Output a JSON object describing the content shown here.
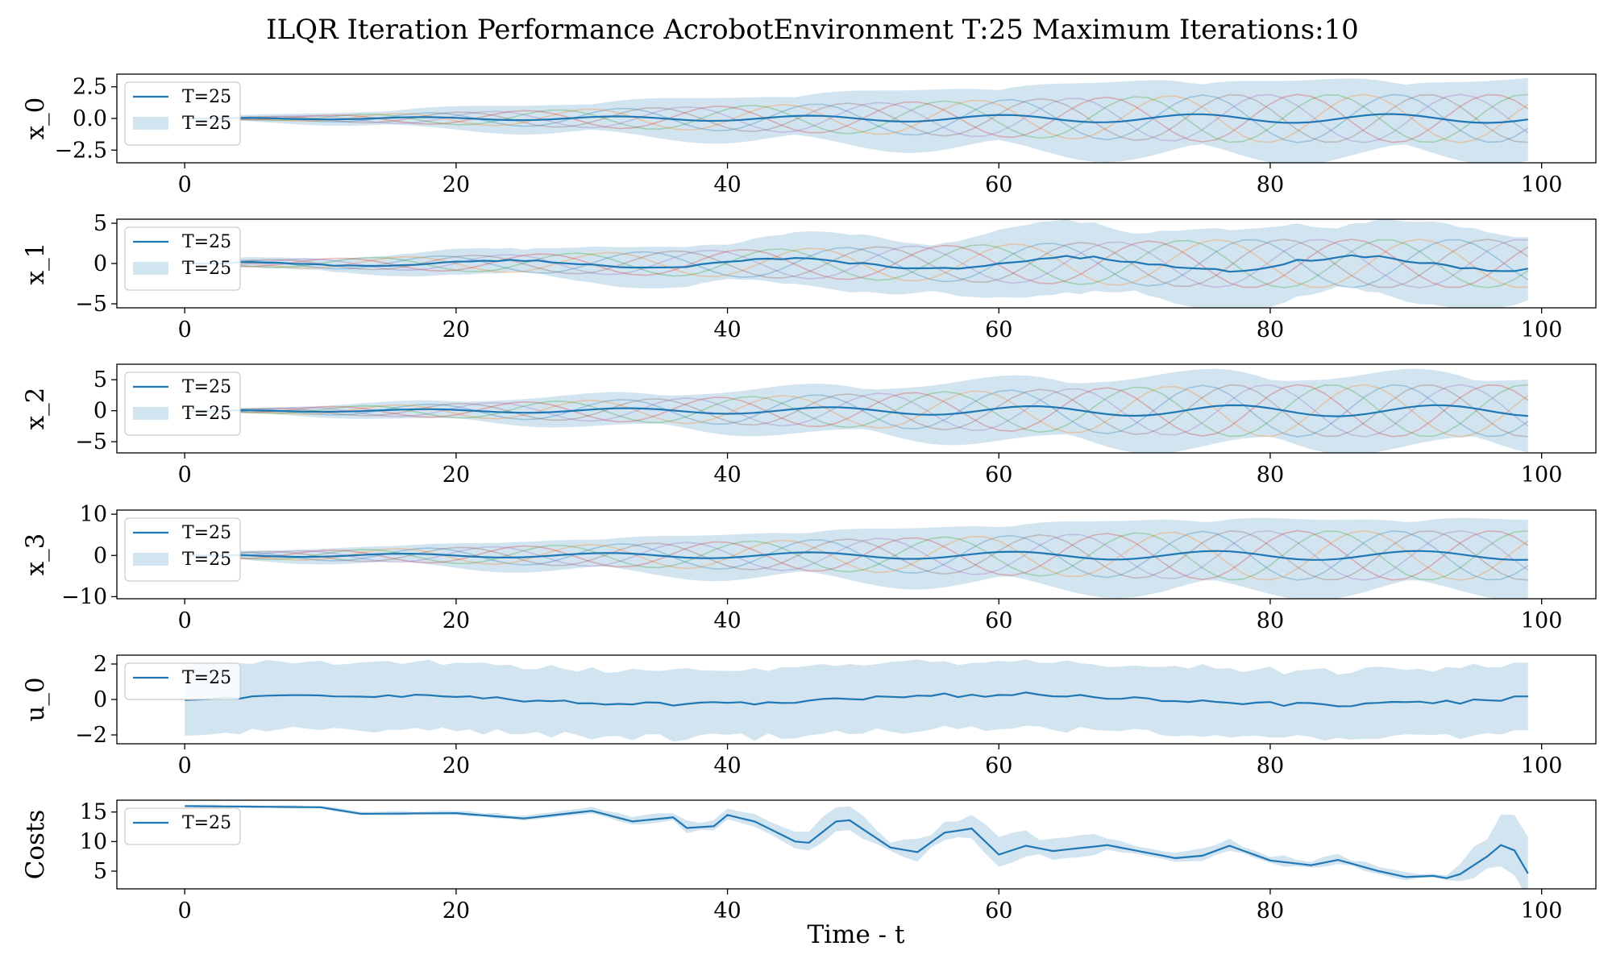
{
  "figure": {
    "title": "ILQR Iteration Performance AcrobotEnvironment T:25 Maximum Iterations:10",
    "xlabel": "Time - t"
  },
  "colors": {
    "mean_line": "#1f77b4",
    "band": "#1f77b4",
    "iterations": [
      "#1f77b4",
      "#ff7f0e",
      "#2ca02c",
      "#d62728",
      "#9467bd",
      "#8c564b"
    ]
  },
  "chart_data": [
    {
      "type": "line",
      "ylabel": "x_0",
      "xlim": [
        -5,
        104
      ],
      "ylim": [
        -3.5,
        3.5
      ],
      "xticks": [
        0,
        20,
        40,
        60,
        80,
        100
      ],
      "yticks": [
        -2.5,
        0.0,
        2.5
      ],
      "ytick_labels": [
        "−2.5",
        "0.0",
        "2.5"
      ],
      "legend": [
        "T=25",
        "T=25"
      ],
      "legend_position": "upper-left",
      "mean": {
        "start": 4,
        "omega": 0.44,
        "phase": 0.2,
        "amp": [
          0.05,
          0.35
        ],
        "noise": 0,
        "clip": null
      },
      "band": {
        "start": 4,
        "width": [
          0.2,
          2.9
        ]
      },
      "traces": {
        "count": 6,
        "start": 4,
        "omega": 0.44,
        "amp": [
          0.1,
          1.9
        ]
      }
    },
    {
      "type": "line",
      "ylabel": "x_1",
      "xlim": [
        -5,
        104
      ],
      "ylim": [
        -5.5,
        5.5
      ],
      "xticks": [
        0,
        20,
        40,
        60,
        80,
        100
      ],
      "yticks": [
        -5,
        0,
        5
      ],
      "ytick_labels": [
        "−5",
        "0",
        "5"
      ],
      "legend": [
        "T=25",
        "T=25"
      ],
      "legend_position": "upper-left",
      "mean": {
        "start": 4,
        "omega": 0.3,
        "phase": 0.8,
        "amp": [
          0.2,
          0.9
        ],
        "noise": 0.25,
        "clip": null
      },
      "band": {
        "start": 4,
        "width": [
          0.5,
          4.5
        ]
      },
      "traces": {
        "count": 6,
        "start": 4,
        "omega": 0.42,
        "amp": [
          0.4,
          3.0
        ]
      }
    },
    {
      "type": "line",
      "ylabel": "x_2",
      "xlim": [
        -5,
        104
      ],
      "ylim": [
        -6.8,
        7.5
      ],
      "xticks": [
        0,
        20,
        40,
        60,
        80,
        100
      ],
      "yticks": [
        -5,
        0,
        5
      ],
      "ytick_labels": [
        "−5",
        "0",
        "5"
      ],
      "legend": [
        "T=25",
        "T=25"
      ],
      "legend_position": "upper-left",
      "mean": {
        "start": 4,
        "omega": 0.42,
        "phase": 0.5,
        "amp": [
          0.1,
          0.9
        ],
        "noise": 0,
        "clip": null
      },
      "band": {
        "start": 4,
        "width": [
          0.4,
          5.6
        ]
      },
      "traces": {
        "count": 6,
        "start": 4,
        "omega": 0.44,
        "amp": [
          0.3,
          4.2
        ]
      }
    },
    {
      "type": "line",
      "ylabel": "x_3",
      "xlim": [
        -5,
        104
      ],
      "ylim": [
        -10.5,
        11
      ],
      "xticks": [
        0,
        20,
        40,
        60,
        80,
        100
      ],
      "yticks": [
        -10,
        0,
        10
      ],
      "ytick_labels": [
        "−10",
        "0",
        "10"
      ],
      "legend": [
        "T=25",
        "T=25"
      ],
      "legend_position": "upper-left",
      "mean": {
        "start": 4,
        "omega": 0.42,
        "phase": 1.1,
        "amp": [
          0.3,
          1.1
        ],
        "noise": 0,
        "clip": null
      },
      "band": {
        "start": 4,
        "width": [
          1.0,
          8.5
        ]
      },
      "traces": {
        "count": 6,
        "start": 4,
        "omega": 0.44,
        "amp": [
          0.8,
          6.0
        ]
      }
    },
    {
      "type": "line",
      "ylabel": "u_0",
      "xlim": [
        -5,
        104
      ],
      "ylim": [
        -2.5,
        2.5
      ],
      "xticks": [
        0,
        20,
        40,
        60,
        80,
        100
      ],
      "yticks": [
        -2,
        0,
        2
      ],
      "ytick_labels": [
        "−2",
        "0",
        "2"
      ],
      "legend": [
        "T=25"
      ],
      "legend_position": "upper-left",
      "mean": {
        "start": 0,
        "omega": 0.13,
        "phase": 0.0,
        "amp": [
          0.2,
          0.3
        ],
        "noise": 0.45,
        "clip": [
          -0.6,
          0.85
        ]
      },
      "band": {
        "start": 0,
        "width": [
          1.75,
          2.05
        ]
      },
      "traces": null
    },
    {
      "type": "line",
      "ylabel": "Costs",
      "xlim": [
        -5,
        104
      ],
      "ylim": [
        2,
        17
      ],
      "xticks": [
        0,
        20,
        40,
        60,
        80,
        100
      ],
      "yticks": [
        5,
        10,
        15
      ],
      "ytick_labels": [
        "5",
        "10",
        "15"
      ],
      "legend": [
        "T=25"
      ],
      "legend_position": "upper-left",
      "cost_anchors": [
        [
          0,
          16
        ],
        [
          10,
          15.8
        ],
        [
          13,
          14.7
        ],
        [
          20,
          14.8
        ],
        [
          25,
          13.9
        ],
        [
          30,
          15.2
        ],
        [
          33,
          13.4
        ],
        [
          36,
          14.1
        ],
        [
          37,
          12.3
        ],
        [
          39,
          12.6
        ],
        [
          40,
          14.5
        ],
        [
          42,
          13.4
        ],
        [
          45,
          10
        ],
        [
          46,
          9.8
        ],
        [
          48,
          13.4
        ],
        [
          49,
          13.6
        ],
        [
          52,
          9
        ],
        [
          54,
          8.2
        ],
        [
          56,
          11.5
        ],
        [
          58,
          12.2
        ],
        [
          60,
          7.8
        ],
        [
          62,
          9.3
        ],
        [
          64,
          8.4
        ],
        [
          68,
          9.4
        ],
        [
          73,
          7.2
        ],
        [
          75,
          7.6
        ],
        [
          77,
          9.3
        ],
        [
          80,
          6.8
        ],
        [
          83,
          6
        ],
        [
          85,
          6.9
        ],
        [
          88,
          5
        ],
        [
          90,
          4
        ],
        [
          92,
          4.2
        ],
        [
          93,
          3.8
        ],
        [
          94,
          4.5
        ],
        [
          96,
          7.5
        ],
        [
          97,
          9.4
        ],
        [
          98,
          8.5
        ],
        [
          99,
          4.6
        ]
      ],
      "cost_band": [
        [
          0,
          0.2
        ],
        [
          30,
          0.5
        ],
        [
          40,
          1.2
        ],
        [
          50,
          2.2
        ],
        [
          52,
          1.2
        ],
        [
          58,
          2.5
        ],
        [
          70,
          1.2
        ],
        [
          80,
          0.9
        ],
        [
          90,
          0.6
        ],
        [
          93,
          0.4
        ],
        [
          95,
          3.2
        ],
        [
          97,
          3.8
        ],
        [
          99,
          6.5
        ]
      ]
    }
  ]
}
